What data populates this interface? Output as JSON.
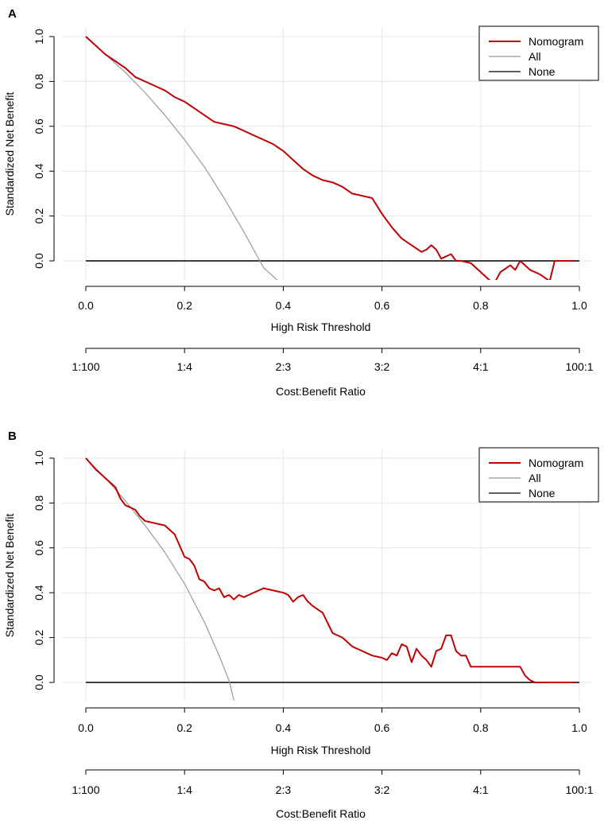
{
  "chart_data": [
    {
      "panel_label": "A",
      "type": "line",
      "title": "",
      "xlabel": "High Risk Threshold",
      "ylabel": "Standardized Net Benefit",
      "xlim": [
        0,
        1
      ],
      "ylim": [
        -0.09,
        1.0
      ],
      "x_ticks": [
        "0.0",
        "0.2",
        "0.4",
        "0.6",
        "0.8",
        "1.0"
      ],
      "y_ticks": [
        "0.0",
        "0.2",
        "0.4",
        "0.6",
        "0.8",
        "1.0"
      ],
      "grid": true,
      "secondary_axis": {
        "label": "Cost:Benefit Ratio",
        "tick_labels": [
          "1:100",
          "1:4",
          "2:3",
          "3:2",
          "4:1",
          "100:1"
        ]
      },
      "legend": {
        "position": "top-right",
        "entries": [
          "Nomogram",
          "All",
          "None"
        ]
      },
      "series": [
        {
          "name": "Nomogram",
          "color": "#c00000",
          "x": [
            0.0,
            0.02,
            0.04,
            0.06,
            0.08,
            0.1,
            0.12,
            0.14,
            0.16,
            0.18,
            0.2,
            0.22,
            0.24,
            0.26,
            0.28,
            0.3,
            0.32,
            0.34,
            0.36,
            0.38,
            0.4,
            0.42,
            0.44,
            0.46,
            0.48,
            0.5,
            0.52,
            0.54,
            0.56,
            0.58,
            0.6,
            0.62,
            0.64,
            0.66,
            0.68,
            0.69,
            0.7,
            0.71,
            0.72,
            0.73,
            0.74,
            0.75,
            0.76,
            0.78,
            0.8,
            0.82,
            0.83,
            0.84,
            0.86,
            0.87,
            0.88,
            0.89,
            0.9,
            0.92,
            0.94,
            0.95,
            0.96,
            0.98,
            0.99
          ],
          "values": [
            1.0,
            0.96,
            0.92,
            0.89,
            0.86,
            0.82,
            0.8,
            0.78,
            0.76,
            0.73,
            0.71,
            0.68,
            0.65,
            0.62,
            0.61,
            0.6,
            0.58,
            0.56,
            0.54,
            0.52,
            0.49,
            0.45,
            0.41,
            0.38,
            0.36,
            0.35,
            0.33,
            0.3,
            0.29,
            0.28,
            0.21,
            0.15,
            0.1,
            0.07,
            0.04,
            0.05,
            0.07,
            0.05,
            0.01,
            0.02,
            0.03,
            0.0,
            0.0,
            -0.01,
            -0.05,
            -0.09,
            -0.09,
            -0.05,
            -0.02,
            -0.04,
            0.0,
            -0.02,
            -0.04,
            -0.06,
            -0.09,
            0.0,
            0.0,
            0.0,
            0.0
          ]
        },
        {
          "name": "All",
          "color": "#999999",
          "x": [
            0.0,
            0.04,
            0.08,
            0.12,
            0.16,
            0.2,
            0.24,
            0.28,
            0.32,
            0.36,
            0.39
          ],
          "values": [
            1.0,
            0.92,
            0.84,
            0.75,
            0.65,
            0.54,
            0.42,
            0.28,
            0.13,
            -0.03,
            -0.09
          ]
        },
        {
          "name": "None",
          "color": "#000000",
          "x": [
            0.0,
            1.0
          ],
          "values": [
            0.0,
            0.0
          ]
        }
      ]
    },
    {
      "panel_label": "B",
      "type": "line",
      "title": "",
      "xlabel": "High Risk Threshold",
      "ylabel": "Standardized Net Benefit",
      "xlim": [
        0,
        1
      ],
      "ylim": [
        -0.09,
        1.0
      ],
      "x_ticks": [
        "0.0",
        "0.2",
        "0.4",
        "0.6",
        "0.8",
        "1.0"
      ],
      "y_ticks": [
        "0.0",
        "0.2",
        "0.4",
        "0.6",
        "0.8",
        "1.0"
      ],
      "grid": true,
      "secondary_axis": {
        "label": "Cost:Benefit Ratio",
        "tick_labels": [
          "1:100",
          "1:4",
          "2:3",
          "3:2",
          "4:1",
          "100:1"
        ]
      },
      "legend": {
        "position": "top-right",
        "entries": [
          "Nomogram",
          "All",
          "None"
        ]
      },
      "series": [
        {
          "name": "Nomogram",
          "color": "#c00000",
          "x": [
            0.0,
            0.02,
            0.04,
            0.06,
            0.07,
            0.08,
            0.1,
            0.11,
            0.12,
            0.14,
            0.16,
            0.18,
            0.19,
            0.2,
            0.21,
            0.22,
            0.23,
            0.24,
            0.25,
            0.26,
            0.27,
            0.28,
            0.29,
            0.3,
            0.31,
            0.32,
            0.33,
            0.34,
            0.35,
            0.36,
            0.38,
            0.4,
            0.41,
            0.42,
            0.43,
            0.44,
            0.45,
            0.46,
            0.48,
            0.5,
            0.52,
            0.53,
            0.54,
            0.56,
            0.58,
            0.6,
            0.61,
            0.62,
            0.63,
            0.64,
            0.65,
            0.66,
            0.67,
            0.68,
            0.69,
            0.7,
            0.71,
            0.72,
            0.73,
            0.74,
            0.75,
            0.76,
            0.77,
            0.78,
            0.8,
            0.82,
            0.84,
            0.86,
            0.88,
            0.89,
            0.9,
            0.91,
            0.92,
            0.94,
            0.96,
            0.98,
            0.99
          ],
          "values": [
            1.0,
            0.95,
            0.91,
            0.87,
            0.82,
            0.79,
            0.77,
            0.74,
            0.72,
            0.71,
            0.7,
            0.66,
            0.61,
            0.56,
            0.55,
            0.52,
            0.46,
            0.45,
            0.42,
            0.41,
            0.42,
            0.38,
            0.39,
            0.37,
            0.39,
            0.38,
            0.39,
            0.4,
            0.41,
            0.42,
            0.41,
            0.4,
            0.39,
            0.36,
            0.38,
            0.39,
            0.36,
            0.34,
            0.31,
            0.22,
            0.2,
            0.18,
            0.16,
            0.14,
            0.12,
            0.11,
            0.1,
            0.13,
            0.12,
            0.17,
            0.16,
            0.09,
            0.15,
            0.12,
            0.1,
            0.07,
            0.14,
            0.15,
            0.21,
            0.21,
            0.14,
            0.12,
            0.12,
            0.07,
            0.07,
            0.07,
            0.07,
            0.07,
            0.07,
            0.03,
            0.01,
            0.0,
            0.0,
            0.0,
            0.0,
            0.0,
            0.0
          ]
        },
        {
          "name": "All",
          "color": "#999999",
          "x": [
            0.0,
            0.04,
            0.08,
            0.12,
            0.16,
            0.2,
            0.24,
            0.27,
            0.29,
            0.3
          ],
          "values": [
            1.0,
            0.91,
            0.81,
            0.7,
            0.58,
            0.44,
            0.27,
            0.12,
            0.01,
            -0.08
          ]
        },
        {
          "name": "None",
          "color": "#000000",
          "x": [
            0.0,
            1.0
          ],
          "values": [
            0.0,
            0.0
          ]
        }
      ]
    }
  ]
}
